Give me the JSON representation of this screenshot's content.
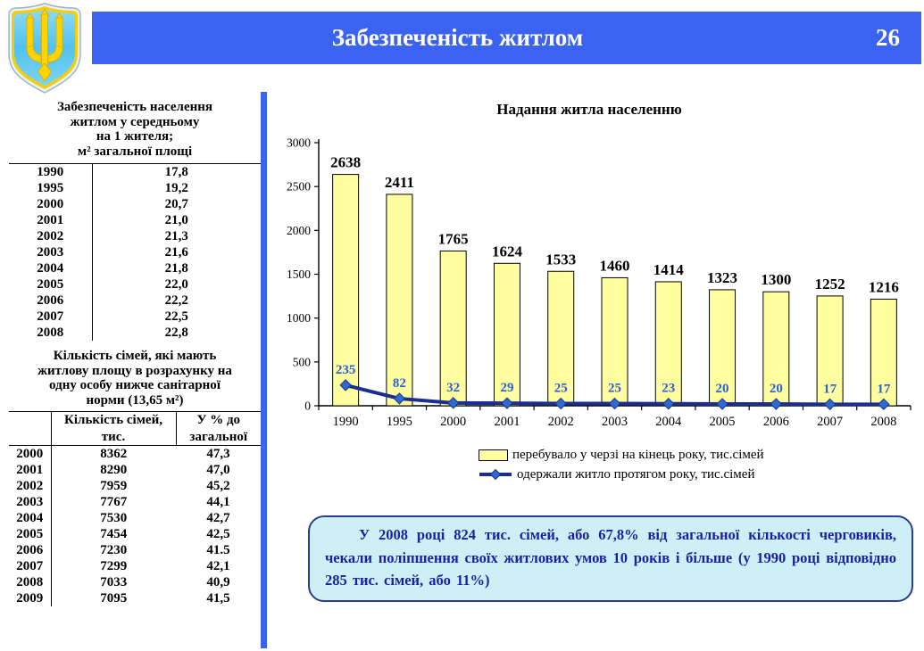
{
  "colors": {
    "header_bg": "#3B62F0",
    "divider": "#3B62F0",
    "bar_fill": "#FFFFA0",
    "bar_border": "#000000",
    "line": "#1B2E8F",
    "marker_fill": "#2E6BD0",
    "point_label": "#2A5FD6",
    "note_bg": "#CDF0F6",
    "note_border": "#2F3C8C",
    "note_text": "#1A1FA8",
    "emblem_shield": "#56C5F2",
    "emblem_trident": "#FFD500"
  },
  "header": {
    "title": "Забезпеченість житлом",
    "page_number": "26"
  },
  "left_panel": {
    "table1": {
      "title_lines": [
        "Забезпеченість населення",
        "житлом у середньому",
        "на 1 жителя;",
        "м² загальної площі"
      ],
      "rows": [
        [
          "1990",
          "17,8"
        ],
        [
          "1995",
          "19,2"
        ],
        [
          "2000",
          "20,7"
        ],
        [
          "2001",
          "21,0"
        ],
        [
          "2002",
          "21,3"
        ],
        [
          "2003",
          "21,6"
        ],
        [
          "2004",
          "21,8"
        ],
        [
          "2005",
          "22,0"
        ],
        [
          "2006",
          "22,2"
        ],
        [
          "2007",
          "22,5"
        ],
        [
          "2008",
          "22,8"
        ]
      ]
    },
    "table2": {
      "title_lines": [
        "Кількість сімей, які мають",
        "житлову площу в розрахунку на",
        "одну особу нижче санітарної",
        "норми (13,65 м²)"
      ],
      "count_header_lines": [
        "Кількість сімей,",
        "тис."
      ],
      "pct_header_lines": [
        "У % до",
        "загальної"
      ],
      "rows": [
        [
          "2000",
          "8362",
          "47,3"
        ],
        [
          "2001",
          "8290",
          "47,0"
        ],
        [
          "2002",
          "7959",
          "45,2"
        ],
        [
          "2003",
          "7767",
          "44,1"
        ],
        [
          "2004",
          "7530",
          "42,7"
        ],
        [
          "2005",
          "7454",
          "42,5"
        ],
        [
          "2006",
          "7230",
          "41.5"
        ],
        [
          "2007",
          "7299",
          "42,1"
        ],
        [
          "2008",
          "7033",
          "40,9"
        ],
        [
          "2009",
          "7095",
          "41,5"
        ]
      ]
    }
  },
  "chart_data": {
    "type": "bar",
    "title": "Надання житла населенню",
    "categories": [
      "1990",
      "1995",
      "2000",
      "2001",
      "2002",
      "2003",
      "2004",
      "2005",
      "2006",
      "2007",
      "2008"
    ],
    "series": [
      {
        "name": "перебувало у черзі на кінець року, тис.сімей",
        "type": "bar",
        "values": [
          2638,
          2411,
          1765,
          1624,
          1533,
          1460,
          1414,
          1323,
          1300,
          1252,
          1216
        ]
      },
      {
        "name": "одержали житло протягом року, тис.сімей",
        "type": "line",
        "values": [
          235,
          82,
          32,
          29,
          25,
          25,
          23,
          20,
          20,
          17,
          17
        ]
      }
    ],
    "ylim": [
      0,
      3000
    ],
    "yticks": [
      0,
      500,
      1000,
      1500,
      2000,
      2500,
      3000
    ],
    "grid": false,
    "legend_position": "bottom"
  },
  "note": {
    "text": "У 2008 році 824 тис. сімей, або 67,8% від загальної кількості черговиків, чекали поліпшення своїх житлових умов 10 років і більше (у 1990 році відповідно 285 тис. сімей, або 11%)"
  }
}
